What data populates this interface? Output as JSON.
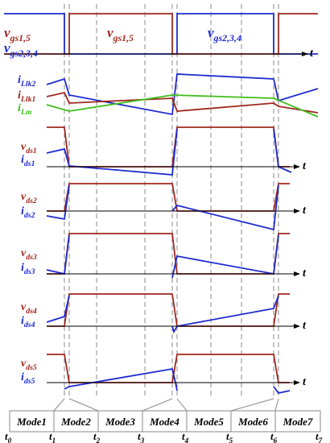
{
  "gate_labels": [
    {
      "main": "v",
      "sub": "gs1,5"
    },
    {
      "main": "v",
      "sub": "gs2,3,4"
    },
    {
      "main": "v",
      "sub": "gs1,5"
    },
    {
      "main": "v",
      "sub": "gs2,3,4"
    }
  ],
  "axis_label": "t",
  "current_labels": [
    {
      "main": "i",
      "sub": "Llk2"
    },
    {
      "main": "i",
      "sub": "Llk1"
    },
    {
      "main": "i",
      "sub": "Lm"
    }
  ],
  "panels": [
    {
      "voltage": {
        "main": "v",
        "sub": "ds1"
      },
      "current": {
        "main": "i",
        "sub": "ds1"
      }
    },
    {
      "voltage": {
        "main": "v",
        "sub": "ds2"
      },
      "current": {
        "main": "i",
        "sub": "ds2"
      }
    },
    {
      "voltage": {
        "main": "v",
        "sub": "ds3"
      },
      "current": {
        "main": "i",
        "sub": "ds3"
      }
    },
    {
      "voltage": {
        "main": "v",
        "sub": "ds4"
      },
      "current": {
        "main": "i",
        "sub": "ds4"
      }
    },
    {
      "voltage": {
        "main": "v",
        "sub": "ds5"
      },
      "current": {
        "main": "i",
        "sub": "ds5"
      }
    }
  ],
  "modes": [
    "Mode1",
    "Mode2",
    "Mode3",
    "Mode4",
    "Mode5",
    "Mode6",
    "Mode7"
  ],
  "times": [
    {
      "main": "t",
      "sub": "0"
    },
    {
      "main": "t",
      "sub": "1"
    },
    {
      "main": "t",
      "sub": "2"
    },
    {
      "main": "t",
      "sub": "3"
    },
    {
      "main": "t",
      "sub": "4"
    },
    {
      "main": "t",
      "sub": "5"
    },
    {
      "main": "t",
      "sub": "6"
    },
    {
      "main": "t",
      "sub": "7"
    }
  ]
}
